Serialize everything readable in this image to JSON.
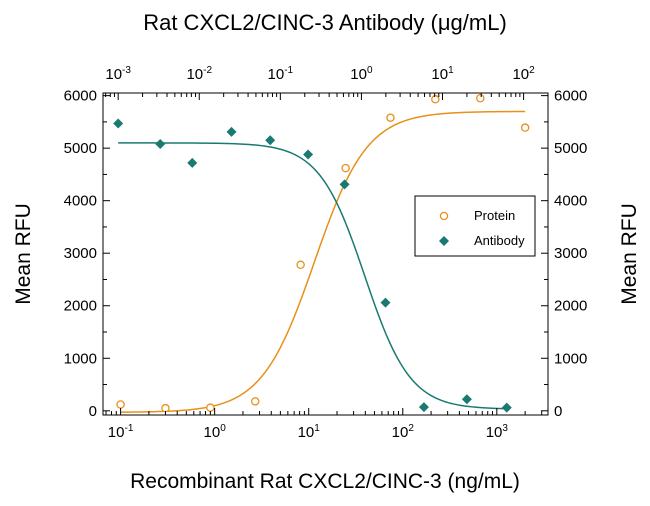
{
  "chart_data": {
    "type": "scatter",
    "title": "Rat CXCL2/CINC-3 Antibody (μg/mL)",
    "xlabel": "Recombinant Rat CXCL2/CINC-3 (ng/mL)",
    "ylabel": "Mean RFU",
    "y2label": "Mean RFU",
    "x_scale": "log",
    "xlim": [
      0.065,
      3500
    ],
    "ylim": [
      -80,
      6050
    ],
    "x_ticks": [
      {
        "value": 0.1,
        "base": "10",
        "exp": "-1"
      },
      {
        "value": 1,
        "base": "10",
        "exp": "0"
      },
      {
        "value": 10,
        "base": "10",
        "exp": "1"
      },
      {
        "value": 100,
        "base": "10",
        "exp": "2"
      },
      {
        "value": 1000,
        "base": "10",
        "exp": "3"
      }
    ],
    "x2_scale": "log",
    "x2lim": [
      0.00065,
      200
    ],
    "x2_ticks": [
      {
        "value": 0.001,
        "base": "10",
        "exp": "-3"
      },
      {
        "value": 0.01,
        "base": "10",
        "exp": "-2"
      },
      {
        "value": 0.1,
        "base": "10",
        "exp": "-1"
      },
      {
        "value": 1,
        "base": "10",
        "exp": "0"
      },
      {
        "value": 10,
        "base": "10",
        "exp": "1"
      },
      {
        "value": 100,
        "base": "10",
        "exp": "2"
      }
    ],
    "y_ticks": [
      "0",
      "1000",
      "2000",
      "3000",
      "4000",
      "5000",
      "6000"
    ],
    "grid": false,
    "legend_position": "right",
    "series": [
      {
        "name": "Protein",
        "axis": "bottom",
        "marker": "open-circle",
        "color": "#e8901a",
        "points": [
          {
            "x": 0.1,
            "y": 120
          },
          {
            "x": 0.3,
            "y": 50
          },
          {
            "x": 0.9,
            "y": 60
          },
          {
            "x": 2.7,
            "y": 180
          },
          {
            "x": 8.2,
            "y": 2780
          },
          {
            "x": 24.7,
            "y": 4620
          },
          {
            "x": 74,
            "y": 5580
          },
          {
            "x": 222,
            "y": 5930
          },
          {
            "x": 667,
            "y": 5950
          },
          {
            "x": 2000,
            "y": 5390
          }
        ],
        "fit": {
          "bottom": -30,
          "top": 5700,
          "ec50": 11.5,
          "hill": 1.55
        }
      },
      {
        "name": "Antibody",
        "axis": "top",
        "marker": "filled-diamond",
        "color": "#1a7a72",
        "points": [
          {
            "x": 0.001,
            "y": 5470
          },
          {
            "x": 0.0033,
            "y": 5080
          },
          {
            "x": 0.0082,
            "y": 4720
          },
          {
            "x": 0.025,
            "y": 5310
          },
          {
            "x": 0.075,
            "y": 5150
          },
          {
            "x": 0.22,
            "y": 4880
          },
          {
            "x": 0.62,
            "y": 4310
          },
          {
            "x": 1.98,
            "y": 2060
          },
          {
            "x": 5.9,
            "y": 70
          },
          {
            "x": 20,
            "y": 220
          },
          {
            "x": 62,
            "y": 60
          }
        ],
        "fit": {
          "bottom": 30,
          "top": 5100,
          "ec50": 1.1,
          "hill": 1.55
        }
      }
    ]
  }
}
